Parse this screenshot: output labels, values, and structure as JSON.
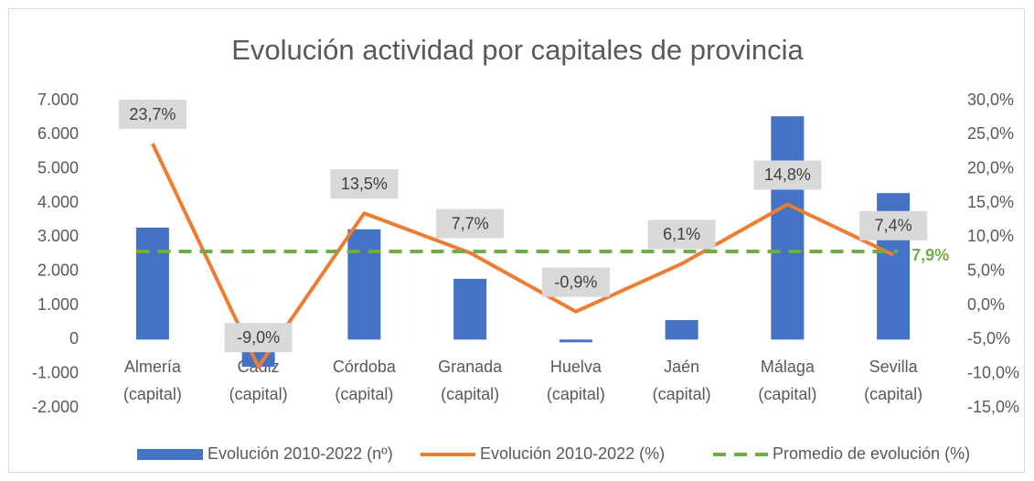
{
  "chart_data": {
    "type": "bar-line",
    "title": "Evolución actividad por capitales de provincia",
    "categories": [
      "Almería (capital)",
      "Cádiz (capital)",
      "Córdoba (capital)",
      "Granada (capital)",
      "Huelva (capital)",
      "Jaén (capital)",
      "Málaga (capital)",
      "Sevilla (capital)"
    ],
    "series": [
      {
        "name": "Evolución 2010-2022 (nº)",
        "type": "bar",
        "color": "#4472c4",
        "axis": "y",
        "values": [
          3280,
          -800,
          3230,
          1780,
          -80,
          570,
          6540,
          4290
        ]
      },
      {
        "name": "Evolución 2010-2022 (%)",
        "type": "line",
        "color": "#ed7d31",
        "axis": "y2",
        "values": [
          23.7,
          -9.0,
          13.5,
          7.7,
          -0.9,
          6.1,
          14.8,
          7.4
        ],
        "value_labels": [
          "23,7%",
          "-9,0%",
          "13,5%",
          "7,7%",
          "-0,9%",
          "6,1%",
          "14,8%",
          "7,4%"
        ]
      },
      {
        "name": "Promedio de evolución (%)",
        "type": "line",
        "dashed": true,
        "color": "#70ad47",
        "axis": "y2",
        "values": [
          7.9,
          7.9,
          7.9,
          7.9,
          7.9,
          7.9,
          7.9,
          7.9
        ],
        "value_labels": [
          null,
          null,
          null,
          null,
          null,
          null,
          null,
          "7,9%"
        ]
      }
    ],
    "ylim": [
      -2000,
      7000
    ],
    "yticks": [
      {
        "value": -2000,
        "label": "-2.000"
      },
      {
        "value": -1000,
        "label": "-1.000"
      },
      0,
      {
        "value": 1000,
        "label": "1.000"
      },
      {
        "value": 2000,
        "label": "2.000"
      },
      {
        "value": 3000,
        "label": "3.000"
      },
      {
        "value": 4000,
        "label": "4.000"
      },
      {
        "value": 5000,
        "label": "5.000"
      },
      {
        "value": 6000,
        "label": "6.000"
      },
      {
        "value": 7000,
        "label": "7.000"
      }
    ],
    "y2lim": [
      -15,
      30
    ],
    "y2ticks": [
      {
        "value": -15,
        "label": "-15,0%"
      },
      {
        "value": -10,
        "label": "-10,0%"
      },
      {
        "value": -5,
        "label": "-5,0%"
      },
      {
        "value": 0,
        "label": "0,0%"
      },
      {
        "value": 5,
        "label": "5,0%"
      },
      {
        "value": 10,
        "label": "10,0%"
      },
      {
        "value": 15,
        "label": "15,0%"
      },
      {
        "value": 20,
        "label": "20,0%"
      },
      {
        "value": 25,
        "label": "25,0%"
      },
      {
        "value": 30,
        "label": "30,0%"
      }
    ],
    "grid": false,
    "legend": "bottom"
  }
}
